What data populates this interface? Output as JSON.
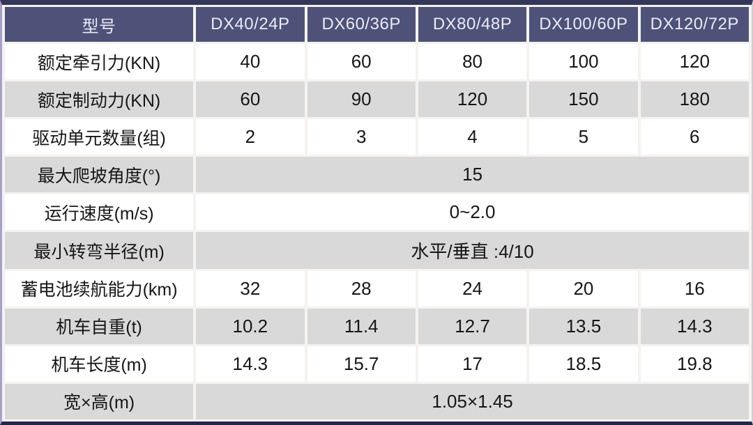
{
  "theme": {
    "header_bg": "#4e5278",
    "header_text": "#eaebf5",
    "row_white": "#ffffff",
    "row_gray": "#d9d9d9",
    "gap_color": "#f4f3f1",
    "border_top": "#34375a",
    "border_bottom": "#23264a",
    "border_left": "#a6a0cb",
    "border_right": "#cfcfcf",
    "text_color": "#161616"
  },
  "table": {
    "header": {
      "model_label": "型号",
      "columns": [
        "DX40/24P",
        "DX60/36P",
        "DX80/48P",
        "DX100/60P",
        "DX120/72P"
      ]
    },
    "rows": [
      {
        "label": "额定牵引力(KN)",
        "values": [
          "40",
          "60",
          "80",
          "100",
          "120"
        ]
      },
      {
        "label": "额定制动力(KN)",
        "values": [
          "60",
          "90",
          "120",
          "150",
          "180"
        ]
      },
      {
        "label": "驱动单元数量(组)",
        "values": [
          "2",
          "3",
          "4",
          "5",
          "6"
        ]
      },
      {
        "label": "最大爬坡角度(°)",
        "span_value": "15"
      },
      {
        "label": "运行速度(m/s)",
        "span_value": "0~2.0"
      },
      {
        "label": "最小转弯半径(m)",
        "span_value": "水平/垂直 :4/10"
      },
      {
        "label": "蓄电池续航能力(km)",
        "values": [
          "32",
          "28",
          "24",
          "20",
          "16"
        ]
      },
      {
        "label": "机车自重(t)",
        "values": [
          "10.2",
          "11.4",
          "12.7",
          "13.5",
          "14.3"
        ]
      },
      {
        "label": "机车长度(m)",
        "values": [
          "14.3",
          "15.7",
          "17",
          "18.5",
          "19.8"
        ]
      },
      {
        "label": "宽×高(m)",
        "span_value": "1.05×1.45"
      }
    ]
  }
}
